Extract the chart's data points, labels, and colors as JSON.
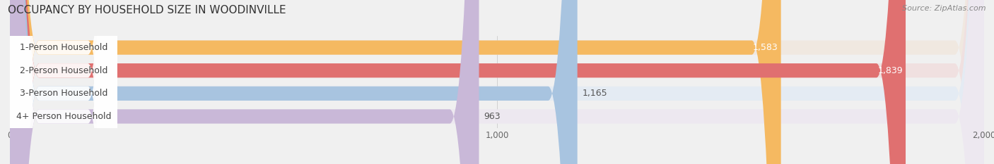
{
  "title": "OCCUPANCY BY HOUSEHOLD SIZE IN WOODINVILLE",
  "source": "Source: ZipAtlas.com",
  "categories": [
    "1-Person Household",
    "2-Person Household",
    "3-Person Household",
    "4+ Person Household"
  ],
  "values": [
    1583,
    1839,
    1165,
    963
  ],
  "bar_colors": [
    "#F5B961",
    "#E07070",
    "#A8C4E0",
    "#C9B8D8"
  ],
  "bar_bg_colors": [
    "#F0E8E0",
    "#F0E0E0",
    "#E4EBF3",
    "#EDE8F0"
  ],
  "label_inside": [
    true,
    true,
    false,
    false
  ],
  "value_inside": [
    true,
    true,
    false,
    false
  ],
  "xlim": [
    0,
    2000
  ],
  "xticks": [
    0,
    1000,
    2000
  ],
  "background_color": "#F0F0F0",
  "bar_background_color": "#EFEFEF",
  "title_fontsize": 11,
  "source_fontsize": 8,
  "label_fontsize": 9,
  "value_fontsize": 9,
  "bar_height": 0.62,
  "figsize": [
    14.06,
    2.33
  ],
  "dpi": 100
}
